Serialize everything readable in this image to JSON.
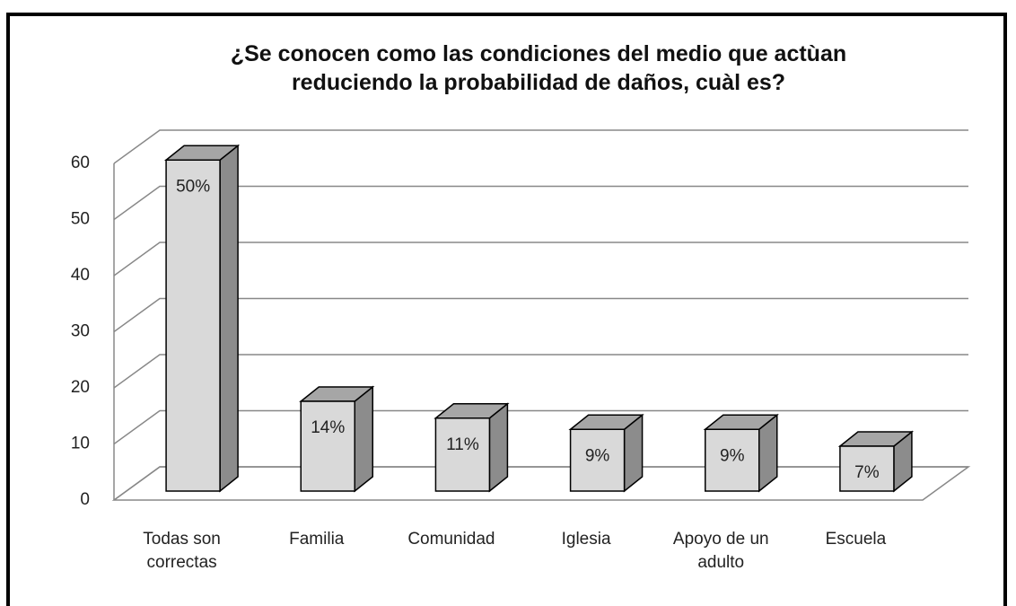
{
  "chart_data": {
    "type": "bar3d",
    "title": "¿Se conocen como las condiciones del medio que actùan\nreduciendo la probabilidad de daños, cuàl es?",
    "categories": [
      "Todas son correctas",
      "Familia",
      "Comunidad",
      "Iglesia",
      "Apoyo de un adulto",
      "Escuela"
    ],
    "values": [
      59,
      16,
      13,
      11,
      11,
      8
    ],
    "data_labels": [
      "50%",
      "14%",
      "11%",
      "9%",
      "9%",
      "7%"
    ],
    "color": "#d9d9d9",
    "ylim": [
      0,
      60
    ],
    "yticks": [
      0,
      10,
      20,
      30,
      40,
      50,
      60
    ],
    "grid": true
  }
}
